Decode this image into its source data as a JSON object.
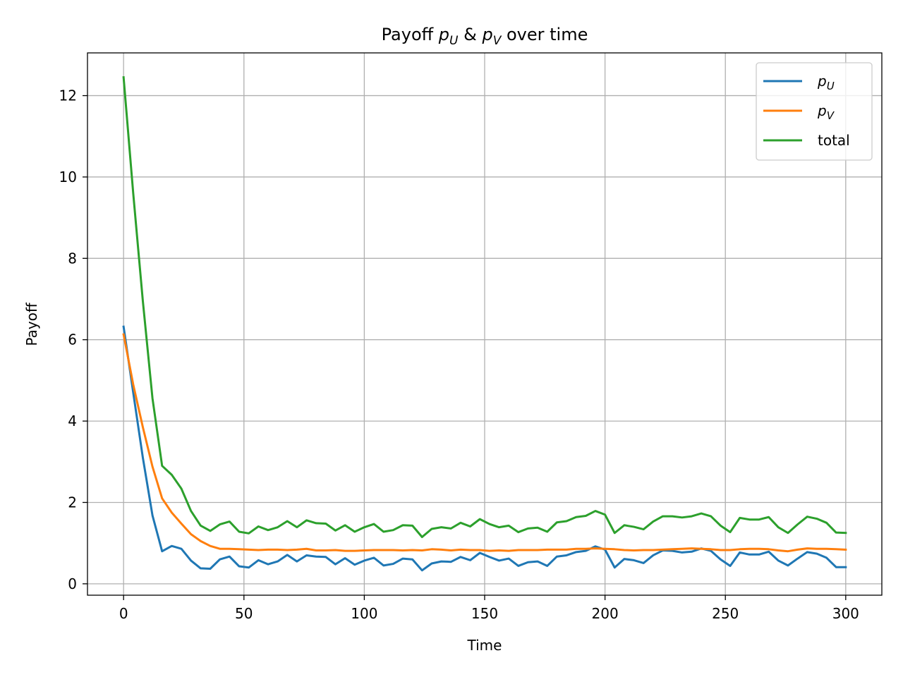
{
  "chart_data": {
    "type": "line",
    "title_prefix": "Payoff ",
    "title_suffix": " over time",
    "title_sym1": "p",
    "title_sub1": "U",
    "title_amp": " & ",
    "title_sym2": "p",
    "title_sub2": "V",
    "xlabel": "Time",
    "ylabel": "Payoff",
    "xlim": [
      -15,
      315
    ],
    "ylim": [
      -0.28,
      13.05
    ],
    "xticks": [
      "0",
      "50",
      "100",
      "150",
      "200",
      "250",
      "300"
    ],
    "yticks": [
      "0",
      "2",
      "4",
      "6",
      "8",
      "10",
      "12"
    ],
    "grid": true,
    "legend_position": "top-right",
    "x": [
      0,
      4,
      8,
      12,
      16,
      20,
      24,
      28,
      32,
      36,
      40,
      44,
      48,
      52,
      56,
      60,
      64,
      68,
      72,
      76,
      80,
      84,
      88,
      92,
      96,
      100,
      104,
      108,
      112,
      116,
      120,
      124,
      128,
      132,
      136,
      140,
      144,
      148,
      152,
      156,
      160,
      164,
      168,
      172,
      176,
      180,
      184,
      188,
      192,
      196,
      200,
      204,
      208,
      212,
      216,
      220,
      224,
      228,
      232,
      236,
      240,
      244,
      248,
      252,
      256,
      260,
      264,
      268,
      272,
      276,
      280,
      284,
      288,
      292,
      296,
      300
    ],
    "series": [
      {
        "name": "p",
        "name_sub": "U",
        "color": "#1f77b4",
        "values": [
          6.32,
          4.7,
          3.1,
          1.68,
          0.8,
          0.93,
          0.86,
          0.57,
          0.38,
          0.37,
          0.6,
          0.67,
          0.43,
          0.4,
          0.58,
          0.48,
          0.55,
          0.71,
          0.55,
          0.7,
          0.67,
          0.66,
          0.48,
          0.63,
          0.47,
          0.57,
          0.64,
          0.45,
          0.49,
          0.62,
          0.6,
          0.33,
          0.5,
          0.55,
          0.54,
          0.66,
          0.58,
          0.76,
          0.66,
          0.57,
          0.62,
          0.44,
          0.53,
          0.55,
          0.44,
          0.67,
          0.7,
          0.78,
          0.81,
          0.92,
          0.84,
          0.4,
          0.61,
          0.58,
          0.51,
          0.7,
          0.82,
          0.81,
          0.77,
          0.79,
          0.87,
          0.81,
          0.6,
          0.44,
          0.77,
          0.72,
          0.72,
          0.79,
          0.57,
          0.45,
          0.62,
          0.78,
          0.74,
          0.64,
          0.41,
          0.41
        ]
      },
      {
        "name": "p",
        "name_sub": "V",
        "color": "#ff7f0e",
        "values": [
          6.13,
          4.9,
          3.85,
          2.88,
          2.1,
          1.75,
          1.48,
          1.22,
          1.05,
          0.93,
          0.86,
          0.86,
          0.85,
          0.84,
          0.83,
          0.84,
          0.84,
          0.83,
          0.84,
          0.86,
          0.82,
          0.82,
          0.83,
          0.81,
          0.81,
          0.82,
          0.83,
          0.83,
          0.83,
          0.82,
          0.83,
          0.82,
          0.85,
          0.84,
          0.82,
          0.84,
          0.83,
          0.83,
          0.81,
          0.82,
          0.81,
          0.83,
          0.83,
          0.83,
          0.84,
          0.84,
          0.84,
          0.86,
          0.86,
          0.87,
          0.86,
          0.85,
          0.83,
          0.82,
          0.83,
          0.83,
          0.84,
          0.85,
          0.86,
          0.87,
          0.86,
          0.85,
          0.83,
          0.83,
          0.85,
          0.86,
          0.86,
          0.85,
          0.82,
          0.8,
          0.84,
          0.87,
          0.86,
          0.86,
          0.85,
          0.84
        ]
      },
      {
        "name": "total",
        "name_sub": "",
        "color": "#2ca02c",
        "values": [
          12.45,
          9.6,
          6.95,
          4.56,
          2.9,
          2.68,
          2.34,
          1.79,
          1.43,
          1.3,
          1.46,
          1.53,
          1.28,
          1.24,
          1.41,
          1.32,
          1.39,
          1.54,
          1.39,
          1.56,
          1.49,
          1.48,
          1.31,
          1.44,
          1.28,
          1.39,
          1.47,
          1.28,
          1.32,
          1.44,
          1.43,
          1.15,
          1.35,
          1.39,
          1.36,
          1.5,
          1.41,
          1.59,
          1.47,
          1.39,
          1.43,
          1.27,
          1.36,
          1.38,
          1.28,
          1.51,
          1.54,
          1.64,
          1.67,
          1.79,
          1.7,
          1.25,
          1.44,
          1.4,
          1.34,
          1.53,
          1.66,
          1.66,
          1.63,
          1.66,
          1.73,
          1.66,
          1.43,
          1.27,
          1.62,
          1.58,
          1.58,
          1.64,
          1.39,
          1.25,
          1.46,
          1.65,
          1.6,
          1.5,
          1.26,
          1.25
        ]
      }
    ]
  }
}
